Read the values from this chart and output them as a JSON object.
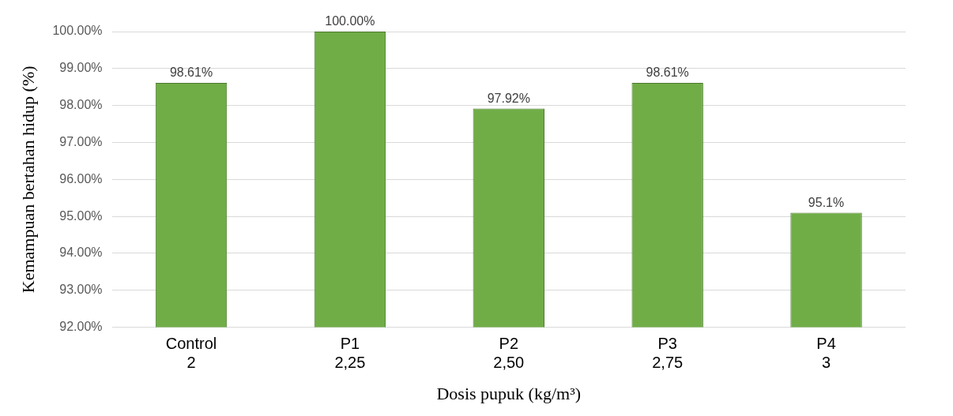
{
  "chart_data": {
    "type": "bar",
    "xlabel": "Dosis pupuk (kg/m³)",
    "ylabel": "Kemampuan bertahan hidup (%)",
    "categories": [
      "Control\n2",
      "P1\n2,25",
      "P2\n2,50",
      "P3\n2,75",
      "P4\n3"
    ],
    "values": [
      98.61,
      100,
      97.92,
      98.61,
      95.1
    ],
    "value_labels": [
      "98.61%",
      "100.00%",
      "97.92%",
      "98.61%",
      "95.1%"
    ],
    "color": "#70ad47",
    "ylim": [
      92,
      100
    ],
    "yticks": [
      {
        "value": 92,
        "label": "92.00%"
      },
      {
        "value": 93,
        "label": "93.00%"
      },
      {
        "value": 94,
        "label": "94.00%"
      },
      {
        "value": 95,
        "label": "95.00%"
      },
      {
        "value": 96,
        "label": "96.00%"
      },
      {
        "value": 97,
        "label": "97.00%"
      },
      {
        "value": 98,
        "label": "98.00%"
      },
      {
        "value": 99,
        "label": "99.00%"
      },
      {
        "value": 100,
        "label": "100.00%"
      }
    ],
    "grid": "y"
  }
}
